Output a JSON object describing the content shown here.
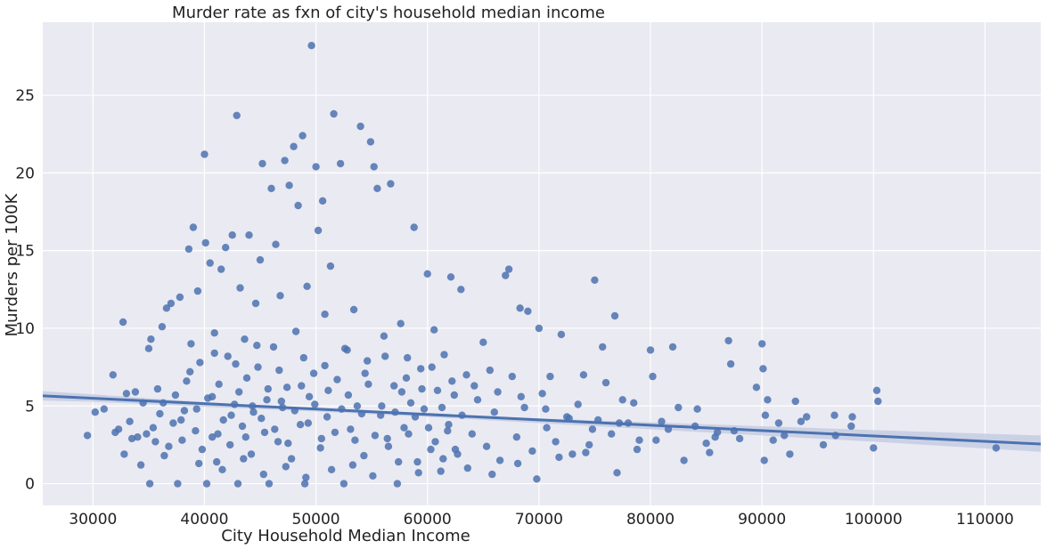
{
  "chart_data": {
    "type": "scatter",
    "title": "Murder rate as fxn of city's household median income",
    "xlabel": "City Household Median Income",
    "ylabel": "Murders per 100K",
    "xlim": [
      25500,
      115000
    ],
    "ylim": [
      -1.4,
      29.7
    ],
    "xticks": [
      30000,
      40000,
      50000,
      60000,
      70000,
      80000,
      90000,
      100000,
      110000
    ],
    "yticks": [
      0,
      5,
      10,
      15,
      20,
      25
    ],
    "grid": true,
    "legend": "none",
    "colors": {
      "background": "#eaeaf2",
      "grid": "#ffffff",
      "points": "#4c72b0",
      "line": "#4c72b0",
      "band": "#c5cde3"
    },
    "regression": {
      "x": [
        25500,
        115000
      ],
      "y": [
        5.65,
        2.55
      ]
    },
    "ci_band": [
      [
        25500,
        5.95,
        5.35
      ],
      [
        30000,
        5.75,
        5.27
      ],
      [
        40000,
        5.25,
        4.95
      ],
      [
        50000,
        4.85,
        4.65
      ],
      [
        60000,
        4.5,
        4.3
      ],
      [
        70000,
        4.2,
        3.9
      ],
      [
        80000,
        3.95,
        3.5
      ],
      [
        90000,
        3.7,
        3.1
      ],
      [
        100000,
        3.45,
        2.7
      ],
      [
        115000,
        3.1,
        2.05
      ]
    ],
    "series": [
      {
        "points": [
          [
            29500,
            3.1
          ],
          [
            30200,
            4.6
          ],
          [
            31000,
            4.8
          ],
          [
            31800,
            7.0
          ],
          [
            32000,
            3.3
          ],
          [
            32300,
            3.5
          ],
          [
            32700,
            10.4
          ],
          [
            32800,
            1.9
          ],
          [
            33000,
            5.8
          ],
          [
            33300,
            4.0
          ],
          [
            33500,
            2.9
          ],
          [
            33800,
            5.9
          ],
          [
            34000,
            3.0
          ],
          [
            34300,
            1.2
          ],
          [
            34500,
            5.2
          ],
          [
            34800,
            3.2
          ],
          [
            35000,
            8.7
          ],
          [
            35100,
            0.0
          ],
          [
            35200,
            9.3
          ],
          [
            35400,
            3.6
          ],
          [
            35600,
            2.7
          ],
          [
            35800,
            6.1
          ],
          [
            36000,
            4.5
          ],
          [
            36200,
            10.1
          ],
          [
            36400,
            1.8
          ],
          [
            36600,
            11.3
          ],
          [
            36800,
            2.4
          ],
          [
            37000,
            11.6
          ],
          [
            37200,
            3.9
          ],
          [
            37400,
            5.7
          ],
          [
            37600,
            0.0
          ],
          [
            37800,
            12.0
          ],
          [
            38000,
            2.8
          ],
          [
            38200,
            4.7
          ],
          [
            38400,
            6.6
          ],
          [
            38600,
            15.1
          ],
          [
            38800,
            9.0
          ],
          [
            39000,
            16.5
          ],
          [
            39200,
            3.4
          ],
          [
            39400,
            12.4
          ],
          [
            39600,
            7.8
          ],
          [
            39800,
            2.2
          ],
          [
            40000,
            21.2
          ],
          [
            40100,
            15.5
          ],
          [
            40200,
            0.0
          ],
          [
            40300,
            5.5
          ],
          [
            40500,
            14.2
          ],
          [
            40700,
            3.0
          ],
          [
            40900,
            9.7
          ],
          [
            41100,
            1.4
          ],
          [
            41300,
            6.4
          ],
          [
            41500,
            13.8
          ],
          [
            41700,
            4.1
          ],
          [
            41900,
            15.2
          ],
          [
            42100,
            8.2
          ],
          [
            42300,
            2.5
          ],
          [
            42500,
            16.0
          ],
          [
            42700,
            5.1
          ],
          [
            42900,
            23.7
          ],
          [
            43000,
            0.0
          ],
          [
            43200,
            12.6
          ],
          [
            43400,
            3.7
          ],
          [
            43600,
            9.3
          ],
          [
            43800,
            6.8
          ],
          [
            44000,
            16.0
          ],
          [
            44200,
            1.9
          ],
          [
            44400,
            4.6
          ],
          [
            44600,
            11.6
          ],
          [
            44800,
            7.5
          ],
          [
            45000,
            14.4
          ],
          [
            45200,
            20.6
          ],
          [
            45400,
            3.3
          ],
          [
            45600,
            5.4
          ],
          [
            45800,
            0.0
          ],
          [
            46000,
            19.0
          ],
          [
            46200,
            8.8
          ],
          [
            46400,
            15.4
          ],
          [
            46600,
            2.7
          ],
          [
            46800,
            12.1
          ],
          [
            47000,
            4.9
          ],
          [
            47200,
            20.8
          ],
          [
            47400,
            6.2
          ],
          [
            47600,
            19.2
          ],
          [
            47800,
            1.6
          ],
          [
            48000,
            21.7
          ],
          [
            48200,
            9.8
          ],
          [
            48400,
            17.9
          ],
          [
            48600,
            3.8
          ],
          [
            48800,
            22.4
          ],
          [
            49000,
            0.0
          ],
          [
            49200,
            12.7
          ],
          [
            49400,
            5.6
          ],
          [
            49600,
            28.2
          ],
          [
            49800,
            7.1
          ],
          [
            50000,
            20.4
          ],
          [
            50200,
            16.3
          ],
          [
            50400,
            2.3
          ],
          [
            50600,
            18.2
          ],
          [
            50800,
            10.9
          ],
          [
            51000,
            4.3
          ],
          [
            51300,
            14.0
          ],
          [
            51600,
            23.8
          ],
          [
            51900,
            6.7
          ],
          [
            52200,
            20.6
          ],
          [
            52500,
            0.0
          ],
          [
            52800,
            8.6
          ],
          [
            53100,
            3.5
          ],
          [
            53400,
            11.2
          ],
          [
            53700,
            5.0
          ],
          [
            54000,
            23.0
          ],
          [
            54300,
            1.8
          ],
          [
            54600,
            7.9
          ],
          [
            54900,
            22.0
          ],
          [
            55200,
            20.4
          ],
          [
            55500,
            19.0
          ],
          [
            55800,
            4.4
          ],
          [
            56100,
            9.5
          ],
          [
            56400,
            2.9
          ],
          [
            56700,
            19.3
          ],
          [
            57000,
            6.3
          ],
          [
            57300,
            0.0
          ],
          [
            57600,
            10.3
          ],
          [
            57900,
            3.6
          ],
          [
            58200,
            8.1
          ],
          [
            58500,
            5.2
          ],
          [
            58800,
            16.5
          ],
          [
            59100,
            1.4
          ],
          [
            59400,
            7.4
          ],
          [
            59700,
            4.8
          ],
          [
            60000,
            13.5
          ],
          [
            60300,
            2.2
          ],
          [
            60600,
            9.9
          ],
          [
            60900,
            6.0
          ],
          [
            61200,
            0.8
          ],
          [
            61500,
            8.3
          ],
          [
            61800,
            3.4
          ],
          [
            62100,
            13.3
          ],
          [
            62400,
            5.7
          ],
          [
            62700,
            1.9
          ],
          [
            63000,
            12.5
          ],
          [
            63500,
            7.0
          ],
          [
            64000,
            3.2
          ],
          [
            64500,
            5.4
          ],
          [
            65000,
            9.1
          ],
          [
            65300,
            2.4
          ],
          [
            65600,
            7.3
          ],
          [
            66000,
            4.6
          ],
          [
            66500,
            1.5
          ],
          [
            67000,
            13.4
          ],
          [
            67300,
            13.8
          ],
          [
            67600,
            6.9
          ],
          [
            68000,
            3.0
          ],
          [
            68300,
            11.3
          ],
          [
            68700,
            4.9
          ],
          [
            69000,
            11.1
          ],
          [
            69400,
            2.1
          ],
          [
            69800,
            0.3
          ],
          [
            70000,
            10.0
          ],
          [
            70300,
            5.8
          ],
          [
            70700,
            3.6
          ],
          [
            71000,
            6.9
          ],
          [
            71500,
            2.7
          ],
          [
            72000,
            9.6
          ],
          [
            72500,
            4.3
          ],
          [
            73000,
            1.9
          ],
          [
            73500,
            5.1
          ],
          [
            74000,
            7.0
          ],
          [
            74500,
            2.5
          ],
          [
            75000,
            13.1
          ],
          [
            75300,
            4.1
          ],
          [
            75700,
            8.8
          ],
          [
            76000,
            6.5
          ],
          [
            76500,
            3.2
          ],
          [
            76800,
            10.8
          ],
          [
            77000,
            0.7
          ],
          [
            77500,
            5.4
          ],
          [
            78000,
            3.9
          ],
          [
            78500,
            5.2
          ],
          [
            79000,
            2.8
          ],
          [
            80000,
            8.6
          ],
          [
            80200,
            6.9
          ],
          [
            80500,
            2.8
          ],
          [
            81000,
            4.0
          ],
          [
            82000,
            8.8
          ],
          [
            82500,
            4.9
          ],
          [
            83000,
            1.5
          ],
          [
            84000,
            3.7
          ],
          [
            84200,
            4.8
          ],
          [
            85000,
            2.6
          ],
          [
            85300,
            2.0
          ],
          [
            86000,
            3.3
          ],
          [
            87000,
            9.2
          ],
          [
            87200,
            7.7
          ],
          [
            87500,
            3.4
          ],
          [
            88000,
            2.9
          ],
          [
            89500,
            6.2
          ],
          [
            90000,
            9.0
          ],
          [
            90100,
            7.4
          ],
          [
            90200,
            1.5
          ],
          [
            90300,
            4.4
          ],
          [
            90500,
            5.4
          ],
          [
            91000,
            2.8
          ],
          [
            91500,
            3.9
          ],
          [
            92000,
            3.1
          ],
          [
            92500,
            1.9
          ],
          [
            93000,
            5.3
          ],
          [
            93500,
            4.0
          ],
          [
            94000,
            4.3
          ],
          [
            95500,
            2.5
          ],
          [
            96500,
            4.4
          ],
          [
            96600,
            3.1
          ],
          [
            98000,
            3.7
          ],
          [
            98100,
            4.3
          ],
          [
            100000,
            2.3
          ],
          [
            100300,
            6.0
          ],
          [
            100400,
            5.3
          ],
          [
            111000,
            2.3
          ],
          [
            36300,
            5.2
          ],
          [
            37900,
            4.1
          ],
          [
            39300,
            4.8
          ],
          [
            40700,
            5.6
          ],
          [
            41200,
            3.2
          ],
          [
            42400,
            4.4
          ],
          [
            43100,
            5.9
          ],
          [
            43700,
            3.0
          ],
          [
            44300,
            5.0
          ],
          [
            45100,
            4.2
          ],
          [
            45700,
            6.1
          ],
          [
            46300,
            3.5
          ],
          [
            46900,
            5.3
          ],
          [
            47500,
            2.6
          ],
          [
            48100,
            4.7
          ],
          [
            48700,
            6.3
          ],
          [
            49300,
            3.9
          ],
          [
            49900,
            5.1
          ],
          [
            50500,
            2.9
          ],
          [
            51100,
            6.0
          ],
          [
            51700,
            3.3
          ],
          [
            52300,
            4.8
          ],
          [
            52900,
            5.7
          ],
          [
            53500,
            2.8
          ],
          [
            54100,
            4.5
          ],
          [
            54700,
            6.4
          ],
          [
            55300,
            3.1
          ],
          [
            55900,
            5.0
          ],
          [
            56500,
            2.4
          ],
          [
            57100,
            4.6
          ],
          [
            57700,
            5.9
          ],
          [
            58300,
            3.2
          ],
          [
            58900,
            4.3
          ],
          [
            59500,
            6.1
          ],
          [
            60100,
            3.6
          ],
          [
            60700,
            2.7
          ],
          [
            61300,
            4.9
          ],
          [
            61900,
            3.8
          ],
          [
            62500,
            2.2
          ],
          [
            63100,
            4.4
          ],
          [
            38700,
            7.2
          ],
          [
            40900,
            8.4
          ],
          [
            42800,
            7.7
          ],
          [
            44700,
            8.9
          ],
          [
            46700,
            7.3
          ],
          [
            48900,
            8.1
          ],
          [
            50800,
            7.6
          ],
          [
            52600,
            8.7
          ],
          [
            54400,
            7.1
          ],
          [
            56200,
            8.2
          ],
          [
            58100,
            6.8
          ],
          [
            60400,
            7.5
          ],
          [
            62200,
            6.6
          ],
          [
            64200,
            6.3
          ],
          [
            66300,
            5.9
          ],
          [
            68400,
            5.6
          ],
          [
            70600,
            4.8
          ],
          [
            72700,
            4.2
          ],
          [
            74800,
            3.5
          ],
          [
            77200,
            3.9
          ],
          [
            39500,
            1.3
          ],
          [
            41600,
            0.9
          ],
          [
            43500,
            1.6
          ],
          [
            45300,
            0.6
          ],
          [
            47300,
            1.1
          ],
          [
            49100,
            0.4
          ],
          [
            51400,
            0.9
          ],
          [
            53300,
            1.2
          ],
          [
            55100,
            0.5
          ],
          [
            57400,
            1.4
          ],
          [
            59200,
            0.7
          ],
          [
            61400,
            1.6
          ],
          [
            63600,
            1.0
          ],
          [
            65800,
            0.6
          ],
          [
            68100,
            1.3
          ],
          [
            71800,
            1.7
          ],
          [
            74200,
            2.0
          ],
          [
            78800,
            2.2
          ],
          [
            81600,
            3.5
          ],
          [
            85800,
            3.0
          ]
        ]
      }
    ]
  }
}
